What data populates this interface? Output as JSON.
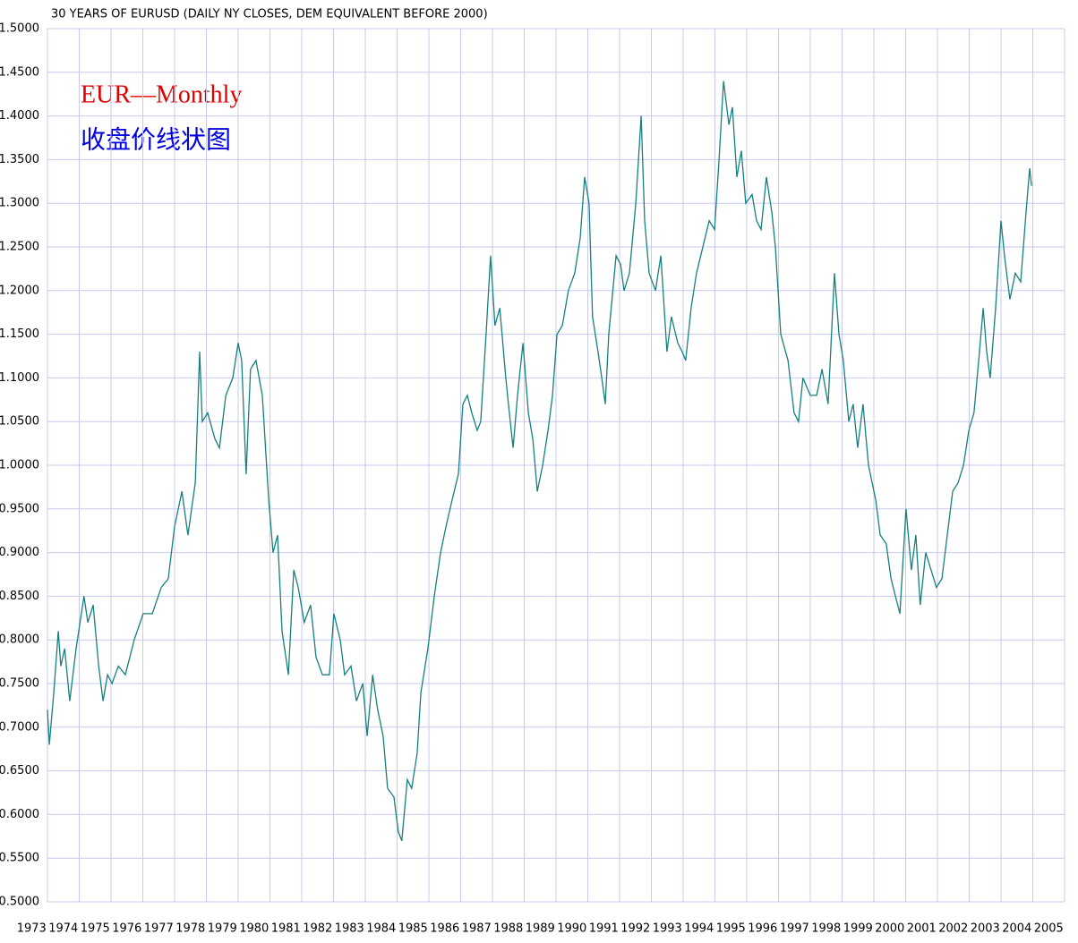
{
  "chart_data": {
    "type": "line",
    "title": "30 YEARS OF EURUSD (DAILY NY CLOSES, DEM EQUIVALENT BEFORE 2000)",
    "annotations": [
      "EUR—Monthly",
      "收盘价线状图"
    ],
    "annotation_colors": [
      "#e00000",
      "#0000e0"
    ],
    "grid": true,
    "xlim": [
      1973,
      2005
    ],
    "xticks": [
      1973,
      1974,
      1975,
      1976,
      1977,
      1978,
      1979,
      1980,
      1981,
      1982,
      1983,
      1984,
      1985,
      1986,
      1987,
      1988,
      1989,
      1990,
      1991,
      1992,
      1993,
      1994,
      1995,
      1996,
      1997,
      1998,
      1999,
      2000,
      2001,
      2002,
      2003,
      2004,
      2005
    ],
    "ylim": [
      0.5,
      1.5
    ],
    "yticks": [
      {
        "value": 0.5,
        "label": "0.5000"
      },
      {
        "value": 0.55,
        "label": "0.5500"
      },
      {
        "value": 0.6,
        "label": "0.6000"
      },
      {
        "value": 0.65,
        "label": "0.6500"
      },
      {
        "value": 0.7,
        "label": "0.7000"
      },
      {
        "value": 0.75,
        "label": "0.7500"
      },
      {
        "value": 0.8,
        "label": "0.8000"
      },
      {
        "value": 0.85,
        "label": "0.8500"
      },
      {
        "value": 0.9,
        "label": "0.9000"
      },
      {
        "value": 0.95,
        "label": "0.9500"
      },
      {
        "value": 1.0,
        "label": "1.0000"
      },
      {
        "value": 1.05,
        "label": "1.0500"
      },
      {
        "value": 1.1,
        "label": "1.1000"
      },
      {
        "value": 1.15,
        "label": "1.1500"
      },
      {
        "value": 1.2,
        "label": "1.2000"
      },
      {
        "value": 1.25,
        "label": "1.2500"
      },
      {
        "value": 1.3,
        "label": "1.3000"
      },
      {
        "value": 1.35,
        "label": "1.3500"
      },
      {
        "value": 1.4,
        "label": "1.4000"
      },
      {
        "value": 1.45,
        "label": "1.4500"
      },
      {
        "value": 1.5,
        "label": "1.5000"
      }
    ],
    "x": [
      1973.0,
      1973.06,
      1973.2,
      1973.34,
      1973.42,
      1973.54,
      1973.7,
      1973.9,
      1974.15,
      1974.27,
      1974.44,
      1974.61,
      1974.75,
      1974.89,
      1975.03,
      1975.23,
      1975.45,
      1975.73,
      1976.01,
      1976.3,
      1976.58,
      1976.8,
      1977.0,
      1977.23,
      1977.42,
      1977.65,
      1977.79,
      1977.87,
      1978.04,
      1978.27,
      1978.41,
      1978.61,
      1978.83,
      1979.0,
      1979.11,
      1979.25,
      1979.39,
      1979.56,
      1979.76,
      1979.96,
      1980.1,
      1980.24,
      1980.38,
      1980.58,
      1980.75,
      1980.89,
      1981.08,
      1981.28,
      1981.45,
      1981.65,
      1981.87,
      1982.01,
      1982.21,
      1982.35,
      1982.55,
      1982.72,
      1982.92,
      1983.06,
      1983.23,
      1983.39,
      1983.56,
      1983.7,
      1983.9,
      1984.04,
      1984.15,
      1984.32,
      1984.46,
      1984.63,
      1984.75,
      1984.97,
      1985.17,
      1985.37,
      1985.54,
      1985.73,
      1985.93,
      1986.07,
      1986.21,
      1986.35,
      1986.52,
      1986.63,
      1986.8,
      1986.94,
      1987.08,
      1987.23,
      1987.42,
      1987.56,
      1987.65,
      1987.79,
      1987.96,
      1988.13,
      1988.27,
      1988.41,
      1988.58,
      1988.75,
      1988.89,
      1989.03,
      1989.2,
      1989.39,
      1989.59,
      1989.76,
      1989.9,
      1990.04,
      1990.15,
      1990.32,
      1990.44,
      1990.55,
      1990.66,
      1990.89,
      1991.03,
      1991.14,
      1991.31,
      1991.51,
      1991.68,
      1991.79,
      1991.93,
      1992.13,
      1992.3,
      1992.49,
      1992.63,
      1992.83,
      1992.97,
      1993.08,
      1993.25,
      1993.42,
      1993.62,
      1993.82,
      1993.99,
      1994.13,
      1994.27,
      1994.44,
      1994.55,
      1994.69,
      1994.83,
      1994.97,
      1995.17,
      1995.31,
      1995.45,
      1995.62,
      1995.79,
      1995.9,
      1996.07,
      1996.3,
      1996.49,
      1996.63,
      1996.77,
      1997.0,
      1997.2,
      1997.37,
      1997.56,
      1997.76,
      1997.9,
      1998.04,
      1998.21,
      1998.35,
      1998.49,
      1998.66,
      1998.83,
      1999.06,
      1999.2,
      1999.39,
      1999.54,
      1999.68,
      1999.82,
      2000.01,
      2000.18,
      2000.32,
      2000.46,
      2000.63,
      2000.8,
      2000.97,
      2001.14,
      2001.31,
      2001.48,
      2001.65,
      2001.82,
      2001.99,
      2002.15,
      2002.3,
      2002.44,
      2002.55,
      2002.66,
      2002.83,
      2003.0,
      2003.11,
      2003.28,
      2003.45,
      2003.62,
      2003.79,
      2003.9,
      2003.96
    ],
    "series": [
      {
        "name": "EURUSD",
        "color": "#15807e",
        "values": [
          0.72,
          0.68,
          0.74,
          0.81,
          0.77,
          0.79,
          0.73,
          0.79,
          0.85,
          0.82,
          0.84,
          0.77,
          0.73,
          0.76,
          0.75,
          0.77,
          0.76,
          0.8,
          0.83,
          0.83,
          0.86,
          0.87,
          0.93,
          0.97,
          0.92,
          0.98,
          1.13,
          1.05,
          1.06,
          1.03,
          1.02,
          1.08,
          1.1,
          1.14,
          1.12,
          0.99,
          1.11,
          1.12,
          1.08,
          0.96,
          0.9,
          0.92,
          0.81,
          0.76,
          0.88,
          0.86,
          0.82,
          0.84,
          0.78,
          0.76,
          0.76,
          0.83,
          0.8,
          0.76,
          0.77,
          0.73,
          0.75,
          0.69,
          0.76,
          0.72,
          0.69,
          0.63,
          0.62,
          0.58,
          0.57,
          0.64,
          0.63,
          0.67,
          0.74,
          0.79,
          0.85,
          0.9,
          0.93,
          0.96,
          0.99,
          1.07,
          1.08,
          1.06,
          1.04,
          1.05,
          1.15,
          1.24,
          1.16,
          1.18,
          1.1,
          1.05,
          1.02,
          1.08,
          1.14,
          1.06,
          1.03,
          0.97,
          1.0,
          1.04,
          1.08,
          1.15,
          1.16,
          1.2,
          1.22,
          1.26,
          1.33,
          1.3,
          1.17,
          1.13,
          1.1,
          1.07,
          1.15,
          1.24,
          1.23,
          1.2,
          1.22,
          1.3,
          1.4,
          1.28,
          1.22,
          1.2,
          1.24,
          1.13,
          1.17,
          1.14,
          1.13,
          1.12,
          1.18,
          1.22,
          1.25,
          1.28,
          1.27,
          1.35,
          1.44,
          1.39,
          1.41,
          1.33,
          1.36,
          1.3,
          1.31,
          1.28,
          1.27,
          1.33,
          1.29,
          1.25,
          1.15,
          1.12,
          1.06,
          1.05,
          1.1,
          1.08,
          1.08,
          1.11,
          1.07,
          1.22,
          1.15,
          1.12,
          1.05,
          1.07,
          1.02,
          1.07,
          1.0,
          0.96,
          0.92,
          0.91,
          0.87,
          0.85,
          0.83,
          0.95,
          0.88,
          0.92,
          0.84,
          0.9,
          0.88,
          0.86,
          0.87,
          0.92,
          0.97,
          0.98,
          1.0,
          1.04,
          1.06,
          1.12,
          1.18,
          1.13,
          1.1,
          1.18,
          1.28,
          1.24,
          1.19,
          1.22,
          1.21,
          1.29,
          1.34,
          1.32
        ]
      }
    ]
  }
}
